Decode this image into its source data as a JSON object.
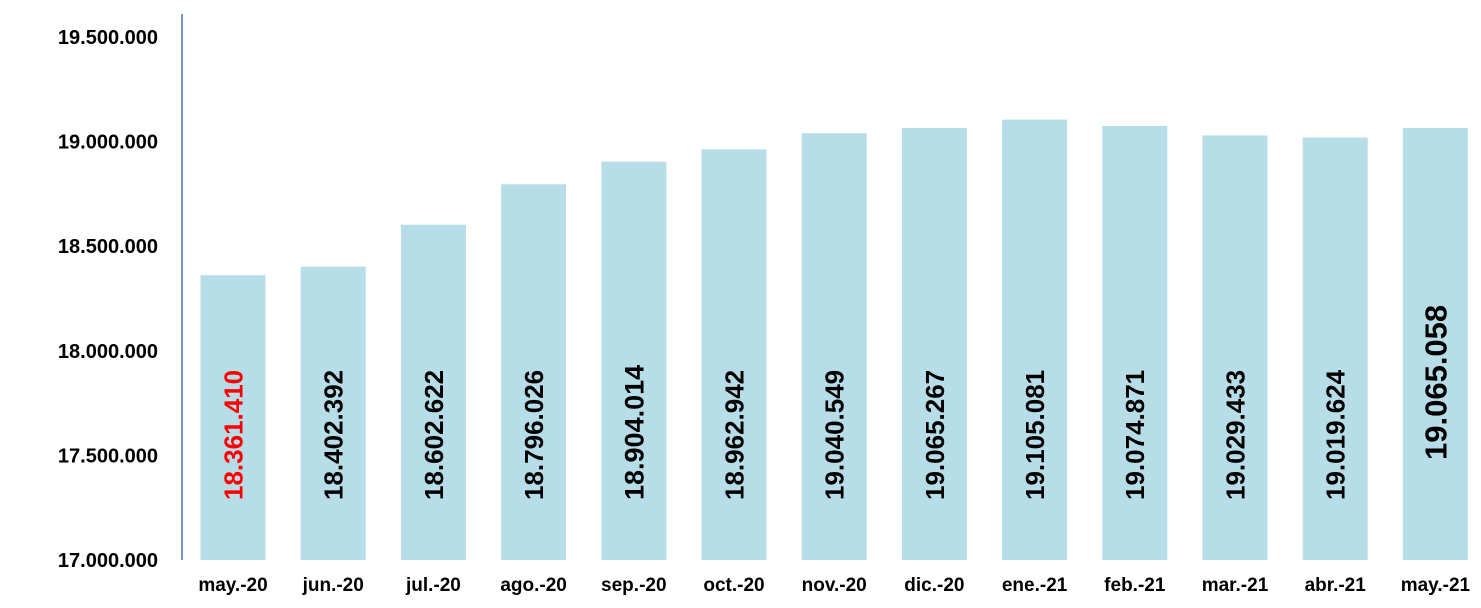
{
  "chart_data": {
    "type": "bar",
    "title": "",
    "xlabel": "",
    "ylabel": "",
    "ylim": [
      17000000,
      19500000
    ],
    "ytick_values": [
      17000000,
      17500000,
      18000000,
      18500000,
      19000000,
      19500000
    ],
    "ytick_labels": [
      "17.000.000",
      "17.500.000",
      "18.000.000",
      "18.500.000",
      "19.000.000",
      "19.500.000"
    ],
    "grid": false,
    "legend": "none",
    "categories": [
      "may.-20",
      "jun.-20",
      "jul.-20",
      "ago.-20",
      "sep.-20",
      "oct.-20",
      "nov.-20",
      "dic.-20",
      "ene.-21",
      "feb.-21",
      "mar.-21",
      "abr.-21",
      "may.-21"
    ],
    "values": [
      18361410,
      18402392,
      18602622,
      18796026,
      18904014,
      18962942,
      19040549,
      19065267,
      19105081,
      19074871,
      19029433,
      19019624,
      19065058
    ],
    "data_labels": [
      "18.361.410",
      "18.402.392",
      "18.602.622",
      "18.796.026",
      "18.904.014",
      "18.962.942",
      "19.040.549",
      "19.065.267",
      "19.105.081",
      "19.074.871",
      "19.029.433",
      "19.019.624",
      "19.065.058"
    ],
    "label_styles": [
      "highlight",
      "normal",
      "normal",
      "normal",
      "bold",
      "normal",
      "normal",
      "normal",
      "normal",
      "normal",
      "normal",
      "normal",
      "emphasis"
    ],
    "colors": {
      "bar": "#b7dde8",
      "axis": "#4a72b0",
      "text": "#000000",
      "highlight_label": "#ff0000"
    }
  }
}
